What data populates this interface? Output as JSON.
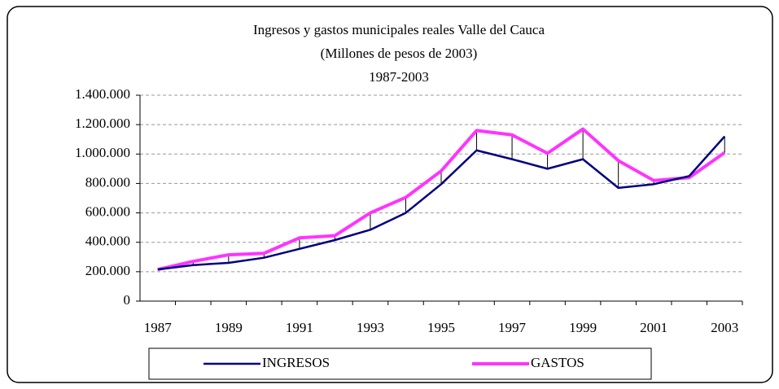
{
  "chart_data": {
    "type": "line",
    "title": "Ingresos y gastos municipales reales Valle del Cauca",
    "subtitle": [
      "(Millones de pesos de 2003)",
      "1987-2003"
    ],
    "x": [
      1987,
      1988,
      1989,
      1990,
      1991,
      1992,
      1993,
      1994,
      1995,
      1996,
      1997,
      1998,
      1999,
      2000,
      2001,
      2002,
      2003
    ],
    "xlim": [
      1986.5,
      2003.5
    ],
    "xticks": [
      1987,
      1989,
      1991,
      1993,
      1995,
      1997,
      1999,
      2001,
      2003
    ],
    "ylim": [
      0,
      1400000
    ],
    "yticks": [
      0,
      {
        "value": 200000,
        "label": "200.000"
      },
      {
        "value": 400000,
        "label": "400.000"
      },
      {
        "value": 600000,
        "label": "600.000"
      },
      {
        "value": 800000,
        "label": "800.000"
      },
      {
        "value": 1000000,
        "label": "1.000.000"
      },
      {
        "value": 1200000,
        "label": "1.200.000"
      },
      {
        "value": 1400000,
        "label": "1.400.000"
      }
    ],
    "grid": true,
    "high_low_lines": true,
    "legend": "bottom",
    "series": [
      {
        "name": "INGRESOS",
        "color": "#000080",
        "values": [
          215000,
          245000,
          260000,
          295000,
          355000,
          415000,
          485000,
          600000,
          795000,
          1025000,
          965000,
          900000,
          965000,
          770000,
          795000,
          850000,
          1120000
        ]
      },
      {
        "name": "GASTOS",
        "color": "#ff33ff",
        "values": [
          215000,
          270000,
          315000,
          325000,
          430000,
          445000,
          600000,
          705000,
          885000,
          1160000,
          1130000,
          1005000,
          1170000,
          955000,
          820000,
          840000,
          1010000
        ]
      }
    ]
  }
}
